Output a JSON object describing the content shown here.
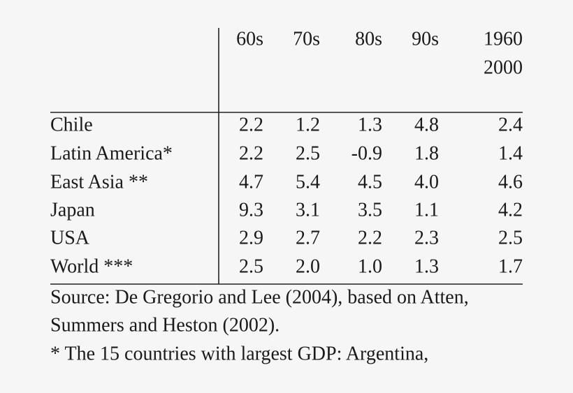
{
  "table": {
    "columns": [
      "60s",
      "70s",
      "80s",
      "90s"
    ],
    "period_column": [
      "1960",
      "2000"
    ],
    "rows": [
      [
        "Chile",
        "2.2",
        "1.2",
        "1.3",
        "4.8",
        "2.4"
      ],
      [
        "Latin America*",
        "2.2",
        "2.5",
        "-0.9",
        "1.8",
        "1.4"
      ],
      [
        "East Asia **",
        "4.7",
        "5.4",
        "4.5",
        "4.0",
        "4.6"
      ],
      [
        "Japan",
        "9.3",
        "3.1",
        "3.5",
        "1.1",
        "4.2"
      ],
      [
        "USA",
        "2.9",
        "2.7",
        "2.2",
        "2.3",
        "2.5"
      ],
      [
        "World ***",
        "2.5",
        "2.0",
        "1.0",
        "1.3",
        "1.7"
      ]
    ]
  },
  "notes": [
    "Source: De Gregorio and Lee (2004), based on Atten,",
    "Summers and Heston (2002).",
    "* The 15 countries with largest GDP: Argentina,"
  ]
}
